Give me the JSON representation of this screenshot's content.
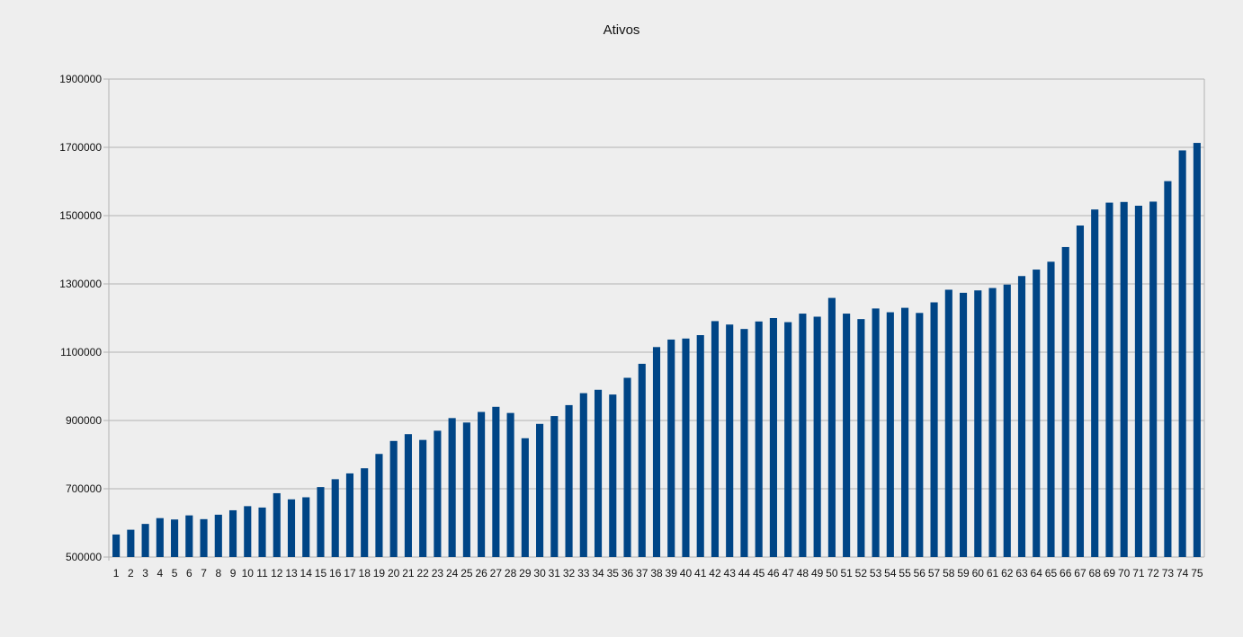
{
  "chart_data": {
    "type": "bar",
    "title": "Ativos",
    "xlabel": "",
    "ylabel": "",
    "ylim": [
      500000,
      1900000
    ],
    "yticks": [
      500000,
      700000,
      900000,
      1100000,
      1300000,
      1500000,
      1700000,
      1900000
    ],
    "ytick_labels": [
      "500000",
      "700000",
      "900000",
      "1100000",
      "1300000",
      "1500000",
      "1700000",
      "1900000"
    ],
    "grid": true,
    "legend": "none",
    "colors": {
      "bar": "#004586",
      "background": "#eeeeee",
      "grid": "#b3b3b3"
    },
    "categories": [
      "1",
      "2",
      "3",
      "4",
      "5",
      "6",
      "7",
      "8",
      "9",
      "10",
      "11",
      "12",
      "13",
      "14",
      "15",
      "16",
      "17",
      "18",
      "19",
      "20",
      "21",
      "22",
      "23",
      "24",
      "25",
      "26",
      "27",
      "28",
      "29",
      "30",
      "31",
      "32",
      "33",
      "34",
      "35",
      "36",
      "37",
      "38",
      "39",
      "40",
      "41",
      "42",
      "43",
      "44",
      "45",
      "46",
      "47",
      "48",
      "49",
      "50",
      "51",
      "52",
      "53",
      "54",
      "55",
      "56",
      "57",
      "58",
      "59",
      "60",
      "61",
      "62",
      "63",
      "64",
      "65",
      "66",
      "67",
      "68",
      "69",
      "70",
      "71",
      "72",
      "73",
      "74",
      "75"
    ],
    "values": [
      566000,
      580000,
      597000,
      614000,
      610000,
      622000,
      611000,
      624000,
      637000,
      649000,
      645000,
      687000,
      669000,
      675000,
      705000,
      728000,
      745000,
      760000,
      802000,
      840000,
      860000,
      843000,
      870000,
      907000,
      894000,
      925000,
      940000,
      922000,
      848000,
      890000,
      913000,
      945000,
      980000,
      990000,
      976000,
      1025000,
      1066000,
      1115000,
      1137000,
      1140000,
      1150000,
      1191000,
      1181000,
      1168000,
      1190000,
      1200000,
      1188000,
      1213000,
      1204000,
      1259000,
      1213000,
      1197000,
      1228000,
      1217000,
      1230000,
      1215000,
      1246000,
      1283000,
      1274000,
      1281000,
      1288000,
      1298000,
      1323000,
      1342000,
      1365000,
      1408000,
      1471000,
      1518000,
      1538000,
      1540000,
      1529000,
      1541000,
      1601000,
      1691000,
      1713000
    ]
  }
}
